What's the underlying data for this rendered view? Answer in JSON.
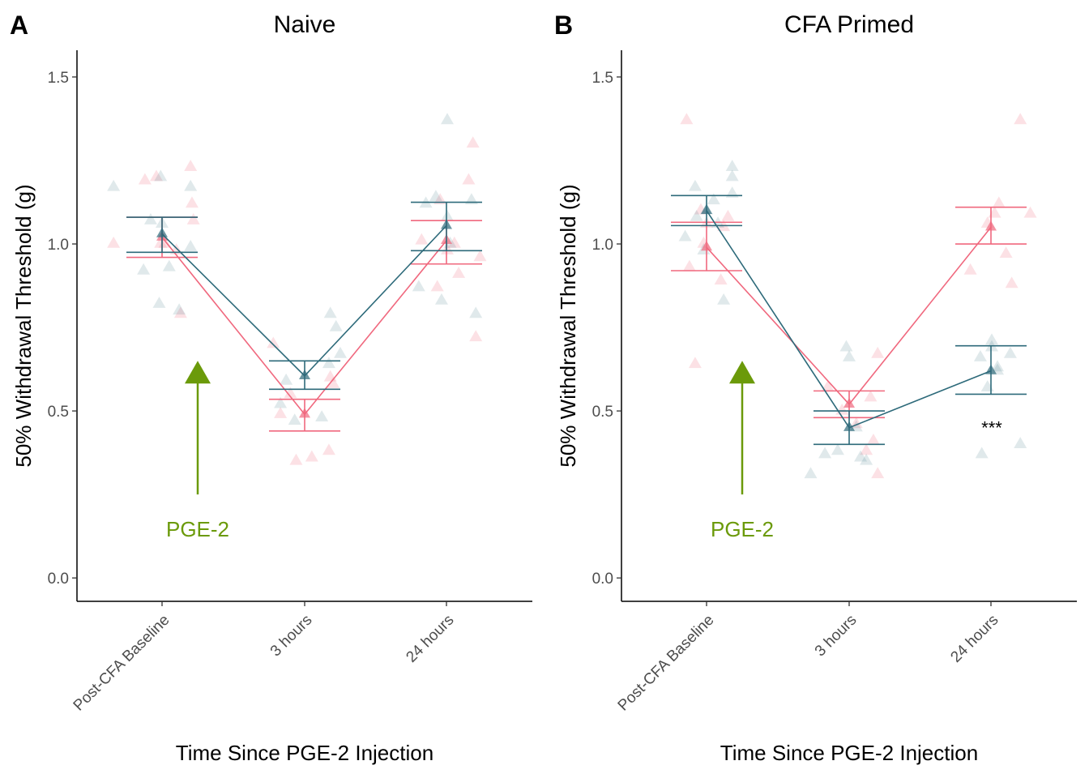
{
  "chart_data": [
    {
      "type": "scatter",
      "panel_letter": "A",
      "title": "Naive",
      "xlabel": "Time Since PGE-2 Injection",
      "ylabel": "50% Withdrawal Threshold (g)",
      "categories": [
        "Post-CFA Baseline",
        "3 hours",
        "24 hours"
      ],
      "ylim": [
        -0.07,
        1.58
      ],
      "yticks": [
        0.0,
        0.5,
        1.0,
        1.5
      ],
      "ytick_labels": [
        "0.0",
        "0.5",
        "1.0",
        "1.5"
      ],
      "grid": false,
      "legend": "none",
      "series": [
        {
          "color": "#f0687e",
          "point_alpha": 0.2,
          "means": [
            1.02,
            0.49,
            1.01
          ],
          "error_low": [
            0.96,
            0.44,
            0.94
          ],
          "error_high": [
            1.08,
            0.535,
            1.07
          ],
          "points": [
            [
              0.66,
              1.0
            ],
            [
              0.88,
              1.19
            ],
            [
              0.96,
              1.2
            ],
            [
              1.02,
              1.0
            ],
            [
              1.1,
              0.98
            ],
            [
              1.13,
              0.79
            ],
            [
              1.2,
              1.23
            ],
            [
              1.21,
              1.12
            ],
            [
              1.22,
              1.07
            ],
            [
              0.99,
              1.0
            ],
            [
              1.78,
              0.7
            ],
            [
              1.83,
              0.49
            ],
            [
              1.94,
              0.35
            ],
            [
              2.05,
              0.36
            ],
            [
              2.17,
              0.38
            ],
            [
              2.18,
              0.6
            ],
            [
              2.2,
              0.58
            ],
            [
              1.9,
              0.55
            ],
            [
              2.82,
              1.01
            ],
            [
              2.93,
              0.87
            ],
            [
              2.95,
              1.13
            ],
            [
              3.05,
              1.0
            ],
            [
              3.08,
              0.91
            ],
            [
              3.15,
              1.19
            ],
            [
              3.18,
              1.3
            ],
            [
              3.2,
              0.72
            ],
            [
              3.23,
              0.96
            ],
            [
              3.0,
              0.98
            ]
          ]
        },
        {
          "color": "#2d6a7a",
          "point_alpha": 0.15,
          "means": [
            1.03,
            0.605,
            1.055
          ],
          "error_low": [
            0.975,
            0.565,
            0.98
          ],
          "error_high": [
            1.08,
            0.65,
            1.125
          ],
          "points": [
            [
              0.66,
              1.17
            ],
            [
              0.87,
              0.92
            ],
            [
              0.92,
              1.07
            ],
            [
              0.98,
              0.82
            ],
            [
              0.99,
              1.2
            ],
            [
              1.05,
              0.93
            ],
            [
              1.12,
              0.8
            ],
            [
              1.2,
              1.17
            ],
            [
              1.2,
              0.99
            ],
            [
              1.0,
              1.06
            ],
            [
              1.83,
              0.52
            ],
            [
              1.87,
              0.59
            ],
            [
              1.93,
              0.47
            ],
            [
              2.12,
              0.48
            ],
            [
              2.17,
              0.64
            ],
            [
              2.18,
              0.79
            ],
            [
              2.22,
              0.75
            ],
            [
              2.25,
              0.67
            ],
            [
              2.8,
              0.87
            ],
            [
              2.85,
              1.12
            ],
            [
              2.92,
              1.14
            ],
            [
              2.96,
              0.83
            ],
            [
              3.0,
              1.37
            ],
            [
              3.02,
              1.0
            ],
            [
              3.17,
              1.13
            ],
            [
              3.2,
              0.79
            ],
            [
              3.0,
              1.08
            ]
          ]
        }
      ],
      "annotation_text": "PGE-2",
      "annotation_color": "#6b9a0a",
      "annotation_arrow_from": [
        1.25,
        0.25
      ],
      "annotation_arrow_to": [
        1.25,
        0.65
      ]
    },
    {
      "type": "scatter",
      "panel_letter": "B",
      "title": "CFA Primed",
      "xlabel": "Time Since PGE-2 Injection",
      "ylabel": "50% Withdrawal Threshold (g)",
      "categories": [
        "Post-CFA Baseline",
        "3 hours",
        "24 hours"
      ],
      "ylim": [
        -0.07,
        1.58
      ],
      "yticks": [
        0.0,
        0.5,
        1.0,
        1.5
      ],
      "ytick_labels": [
        "0.0",
        "0.5",
        "1.0",
        "1.5"
      ],
      "grid": false,
      "legend": "none",
      "series": [
        {
          "color": "#f0687e",
          "point_alpha": 0.2,
          "means": [
            0.99,
            0.52,
            1.05
          ],
          "error_low": [
            0.92,
            0.48,
            1.0
          ],
          "error_high": [
            1.065,
            0.56,
            1.11
          ],
          "points": [
            [
              0.86,
              1.37
            ],
            [
              0.88,
              0.93
            ],
            [
              0.92,
              0.64
            ],
            [
              0.98,
              1.0
            ],
            [
              1.0,
              1.06
            ],
            [
              1.1,
              0.89
            ],
            [
              1.12,
              1.05
            ],
            [
              1.15,
              1.08
            ],
            [
              0.96,
              1.1
            ],
            [
              1.85,
              0.57
            ],
            [
              1.95,
              0.5
            ],
            [
              2.05,
              0.46
            ],
            [
              2.12,
              0.38
            ],
            [
              2.15,
              0.54
            ],
            [
              2.2,
              0.67
            ],
            [
              2.17,
              0.41
            ],
            [
              2.2,
              0.31
            ],
            [
              2.85,
              0.92
            ],
            [
              2.97,
              1.06
            ],
            [
              3.02,
              1.09
            ],
            [
              3.05,
              1.12
            ],
            [
              3.1,
              0.97
            ],
            [
              3.14,
              0.88
            ],
            [
              3.2,
              1.37
            ],
            [
              3.27,
              1.09
            ]
          ]
        },
        {
          "color": "#2d6a7a",
          "point_alpha": 0.15,
          "means": [
            1.1,
            0.45,
            0.62
          ],
          "error_low": [
            1.055,
            0.4,
            0.55
          ],
          "error_high": [
            1.145,
            0.5,
            0.695
          ],
          "points": [
            [
              0.85,
              1.02
            ],
            [
              0.92,
              1.17
            ],
            [
              0.93,
              1.08
            ],
            [
              0.98,
              0.98
            ],
            [
              1.0,
              1.1
            ],
            [
              1.05,
              1.13
            ],
            [
              1.08,
              1.06
            ],
            [
              1.12,
              0.83
            ],
            [
              1.18,
              1.23
            ],
            [
              1.18,
              1.2
            ],
            [
              1.18,
              1.15
            ],
            [
              1.73,
              0.31
            ],
            [
              1.83,
              0.37
            ],
            [
              1.92,
              0.38
            ],
            [
              1.98,
              0.69
            ],
            [
              2.0,
              0.66
            ],
            [
              2.05,
              0.45
            ],
            [
              2.08,
              0.36
            ],
            [
              2.12,
              0.35
            ],
            [
              2.92,
              0.66
            ],
            [
              2.93,
              0.37
            ],
            [
              2.97,
              0.57
            ],
            [
              3.0,
              0.71
            ],
            [
              3.0,
              0.69
            ],
            [
              3.04,
              0.63
            ],
            [
              3.04,
              0.62
            ],
            [
              3.13,
              0.67
            ],
            [
              3.2,
              0.4
            ]
          ]
        }
      ],
      "significance_marker": "***",
      "significance_at": [
        3.0,
        0.45
      ],
      "annotation_text": "PGE-2",
      "annotation_color": "#6b9a0a",
      "annotation_arrow_from": [
        1.25,
        0.25
      ],
      "annotation_arrow_to": [
        1.25,
        0.65
      ]
    }
  ]
}
